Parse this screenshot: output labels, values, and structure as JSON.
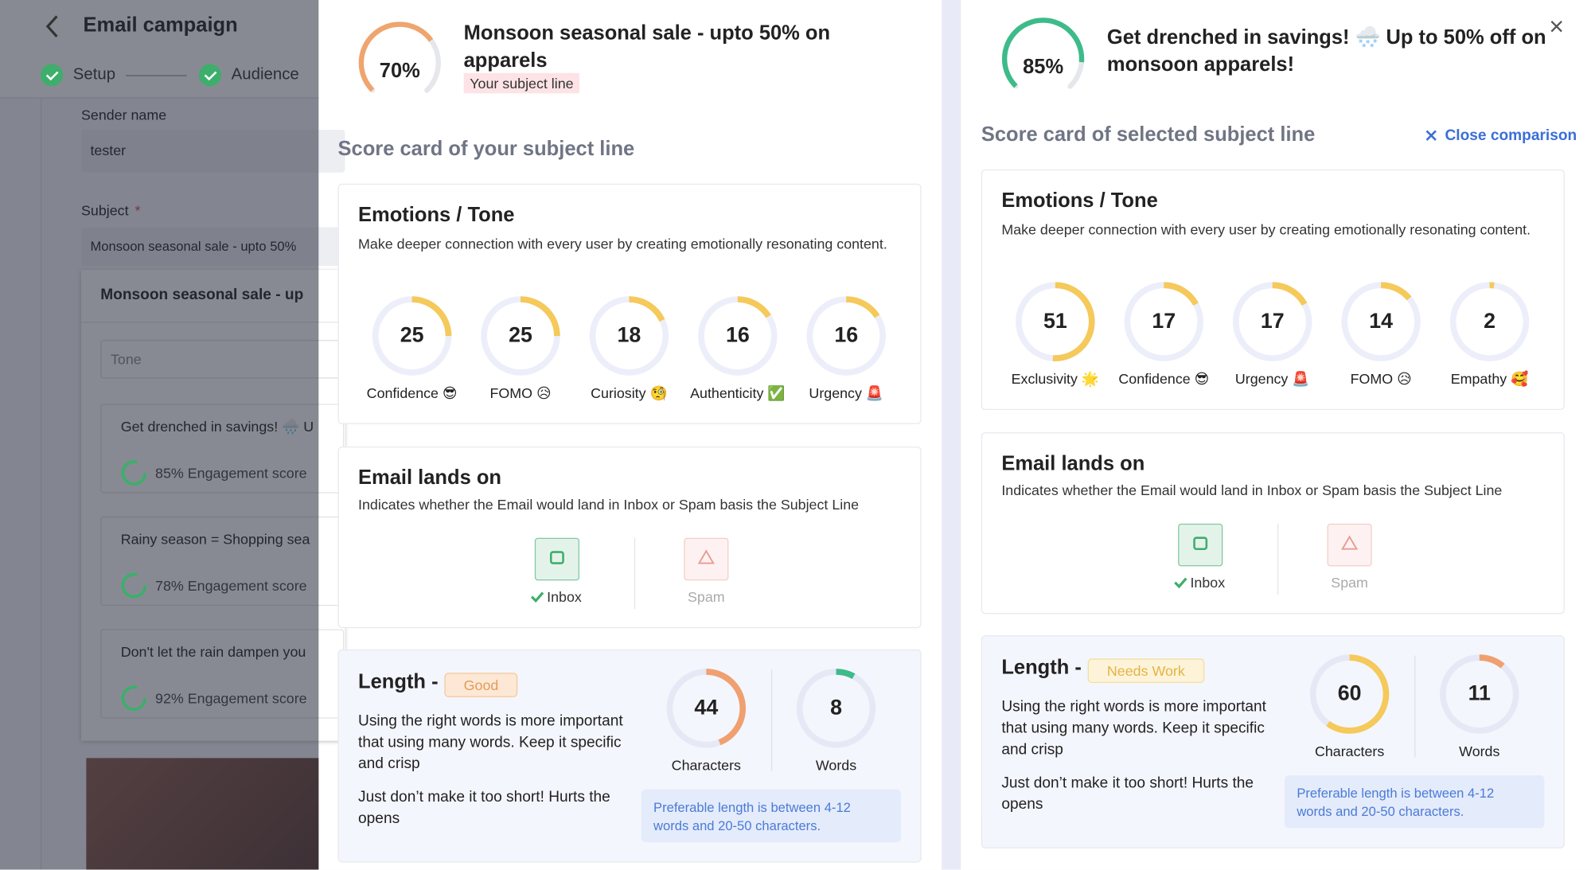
{
  "background": {
    "title": "Email campaign",
    "steps": [
      "Setup",
      "Audience"
    ],
    "sender_label": "Sender name",
    "sender_value": "tester",
    "subject_label": "Subject",
    "required_mark": "*",
    "subject_value": "Monsoon seasonal sale - upto 50%",
    "panel_title": "Monsoon seasonal sale - up",
    "tone_placeholder": "Tone",
    "suggestions": [
      {
        "text": "Get drenched in savings! 🌧️ U",
        "score": "85% Engagement score"
      },
      {
        "text": "Rainy season = Shopping sea",
        "score": "78% Engagement score"
      },
      {
        "text": "Don't let the rain dampen you",
        "score": "92% Engagement score"
      }
    ]
  },
  "close_comparison": "Close comparison",
  "comparison": [
    {
      "score": {
        "value": 70,
        "label": "70%"
      },
      "color": "#f0a46e",
      "subject": "Monsoon seasonal sale - upto 50% on apparels",
      "tag": "Your subject line",
      "scorecard_title": "Score card of your subject line",
      "emotions": {
        "title": "Emotions / Tone",
        "description": "Make deeper connection with every user by creating emotionally resonating content.",
        "items": [
          {
            "label": "Confidence 😎",
            "value": 25
          },
          {
            "label": "FOMO 😥",
            "value": 25
          },
          {
            "label": "Curiosity 🧐",
            "value": 18
          },
          {
            "label": "Authenticity ✅",
            "value": 16
          },
          {
            "label": "Urgency 🚨",
            "value": 16
          }
        ]
      },
      "lands": {
        "title": "Email lands on",
        "description": "Indicates whether the Email would land in Inbox or Spam basis the Subject Line",
        "inbox": "Inbox",
        "spam": "Spam"
      },
      "length": {
        "title": "Length -",
        "badge": "Good",
        "paragraphs": [
          "Using the right words is more important that using many words. Keep it specific and crisp",
          "Just don’t make it too short! Hurts the opens"
        ],
        "characters": {
          "value": 44,
          "label": "Characters",
          "color": "#f0a070"
        },
        "words": {
          "value": 8,
          "label": "Words",
          "color": "#3dbb8a"
        },
        "note": "Preferable length is between 4-12 words and 20-50 characters."
      }
    },
    {
      "score": {
        "value": 85,
        "label": "85%"
      },
      "color": "#3dbb8a",
      "subject": "Get drenched in savings! 🌨️ Up to 50% off on monsoon apparels!",
      "scorecard_title": "Score card of selected subject line",
      "emotions": {
        "title": "Emotions / Tone",
        "description": "Make deeper connection with every user by creating emotionally resonating content.",
        "items": [
          {
            "label": "Exclusivity 🌟",
            "value": 51
          },
          {
            "label": "Confidence 😎",
            "value": 17
          },
          {
            "label": "Urgency 🚨",
            "value": 17
          },
          {
            "label": "FOMO 😥",
            "value": 14
          },
          {
            "label": "Empathy 🥰",
            "value": 2
          }
        ]
      },
      "lands": {
        "title": "Email lands on",
        "description": "Indicates whether the Email would land in Inbox or Spam basis the Subject Line",
        "inbox": "Inbox",
        "spam": "Spam"
      },
      "length": {
        "title": "Length -",
        "badge": "Needs Work",
        "paragraphs": [
          "Using the right words is more important that using many words. Keep it specific and crisp",
          "Just don’t make it too short! Hurts the opens"
        ],
        "characters": {
          "value": 60,
          "label": "Characters",
          "color": "#f5c95a"
        },
        "words": {
          "value": 11,
          "label": "Words",
          "color": "#f0a070"
        },
        "note": "Preferable length is between 4-12 words and 20-50 characters."
      }
    }
  ]
}
